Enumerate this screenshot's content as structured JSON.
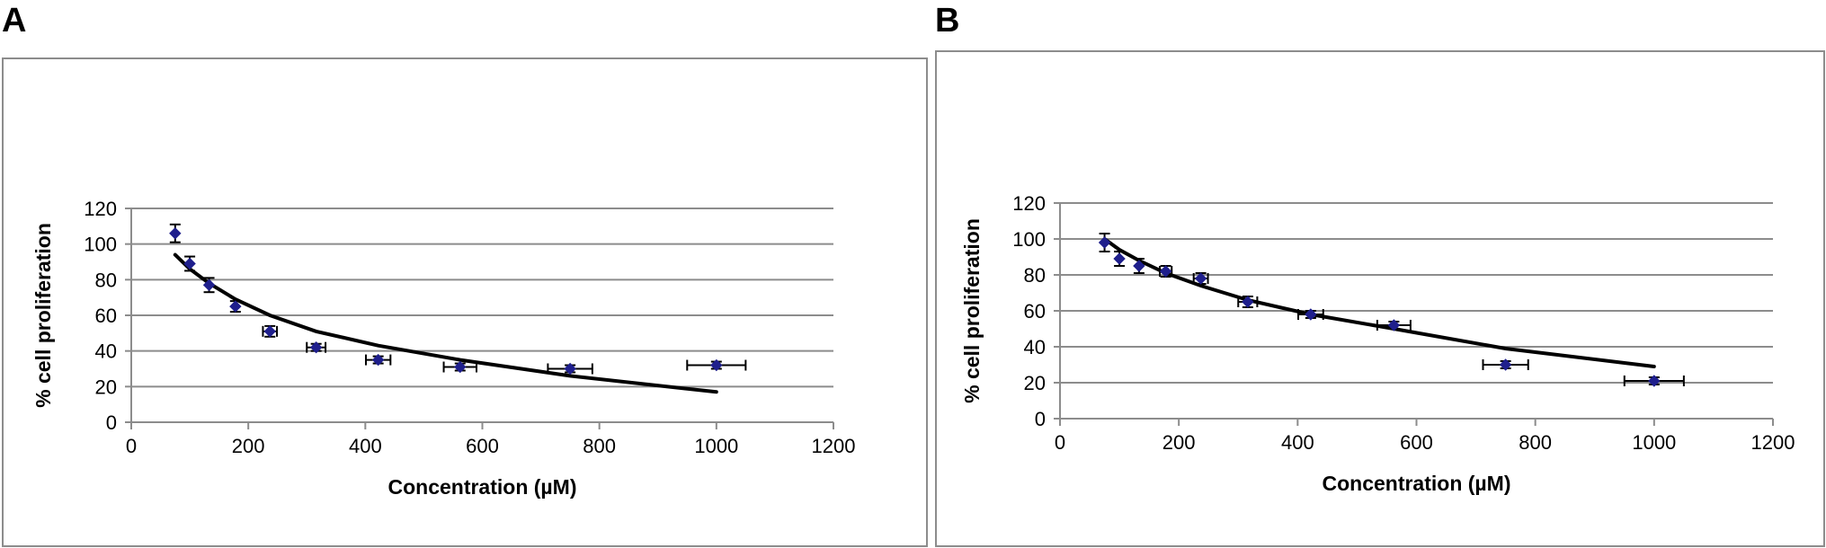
{
  "panels": [
    {
      "letter": "A"
    },
    {
      "letter": "B"
    }
  ],
  "colors": {
    "marker": "#1f1f8c",
    "grid": "#8c8c8c",
    "axis": "#8c8c8c",
    "curve": "#000000",
    "frame": "#8c8c8c"
  },
  "chart_data": [
    {
      "type": "scatter",
      "title": "",
      "xlabel": "Concentration (µM)",
      "ylabel": "% cell proliferation",
      "xlim": [
        0,
        1200
      ],
      "ylim": [
        0,
        120
      ],
      "xticks": [
        0,
        200,
        400,
        600,
        800,
        1000,
        1200
      ],
      "yticks": [
        0,
        20,
        40,
        60,
        80,
        100,
        120
      ],
      "grid": "horizontal",
      "legend": "none",
      "x": [
        75,
        100,
        133,
        178,
        237,
        316,
        422,
        562,
        750,
        1000
      ],
      "y": [
        106,
        89,
        77,
        65,
        51,
        42,
        35,
        31,
        30,
        32
      ],
      "y_err": [
        5,
        4,
        4,
        3,
        3,
        2,
        2,
        2,
        2,
        2
      ],
      "x_err": [
        0,
        0,
        0,
        0,
        12,
        16,
        21,
        28,
        38,
        50
      ],
      "trendline": {
        "x": [
          75,
          100,
          133,
          178,
          237,
          316,
          422,
          562,
          750,
          1000
        ],
        "y": [
          94,
          86,
          78,
          69,
          60,
          51,
          43,
          35,
          26,
          17
        ]
      }
    },
    {
      "type": "scatter",
      "title": "",
      "xlabel": "Concentration (µM)",
      "ylabel": "% cell proliferation",
      "xlim": [
        0,
        1200
      ],
      "ylim": [
        0,
        120
      ],
      "xticks": [
        0,
        200,
        400,
        600,
        800,
        1000,
        1200
      ],
      "yticks": [
        0,
        20,
        40,
        60,
        80,
        100,
        120
      ],
      "grid": "horizontal",
      "legend": "none",
      "x": [
        75,
        100,
        133,
        178,
        237,
        316,
        422,
        562,
        750,
        1000
      ],
      "y": [
        98,
        89,
        85,
        82,
        78,
        65,
        58,
        52,
        30,
        21
      ],
      "y_err": [
        5,
        4,
        4,
        3,
        3,
        3,
        2,
        2,
        2,
        2
      ],
      "x_err": [
        0,
        0,
        0,
        10,
        12,
        16,
        21,
        28,
        38,
        50
      ],
      "trendline": {
        "x": [
          75,
          100,
          133,
          178,
          237,
          316,
          422,
          562,
          750,
          1000
        ],
        "y": [
          100,
          94,
          88,
          81,
          74,
          66,
          58,
          50,
          39,
          29
        ]
      }
    }
  ]
}
